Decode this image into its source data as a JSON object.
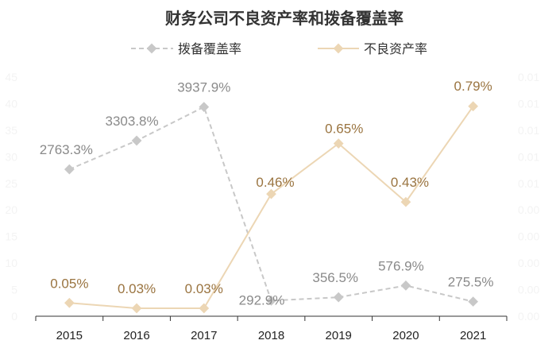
{
  "chart_data": {
    "type": "line",
    "title": "财务公司不良资产率和拨备覆盖率",
    "categories": [
      "2015",
      "2016",
      "2017",
      "2018",
      "2019",
      "2020",
      "2021"
    ],
    "legend_position": "top",
    "grid": false,
    "series": [
      {
        "name": "拨备覆盖率",
        "axis": "left",
        "color": "#c8c8c8",
        "line_style": "dashed",
        "values": [
          2763.3,
          3303.8,
          3937.9,
          292.9,
          356.5,
          576.9,
          275.5
        ],
        "labels": [
          "2763.3%",
          "3303.8%",
          "3937.9%",
          "292.9%",
          "356.5%",
          "576.9%",
          "275.5%"
        ]
      },
      {
        "name": "不良资产率",
        "axis": "right",
        "color": "#ecd6b4",
        "line_style": "solid",
        "values": [
          0.05,
          0.03,
          0.03,
          0.46,
          0.65,
          0.43,
          0.79
        ],
        "labels": [
          "0.05%",
          "0.03%",
          "0.03%",
          "0.46%",
          "0.65%",
          "0.43%",
          "0.79%"
        ]
      }
    ],
    "y_left": {
      "ylim": [
        0,
        4500
      ],
      "ticks": [
        "0",
        "5",
        "10",
        "15",
        "20",
        "25",
        "30",
        "35",
        "40",
        "45"
      ]
    },
    "y_right": {
      "ylim": [
        0,
        0.9
      ],
      "ticks": [
        "0.00",
        "0.00",
        "0.00",
        "0.00",
        "0.00",
        "0.01",
        "0.01",
        "0.01",
        "0.01",
        "0.01"
      ]
    }
  }
}
